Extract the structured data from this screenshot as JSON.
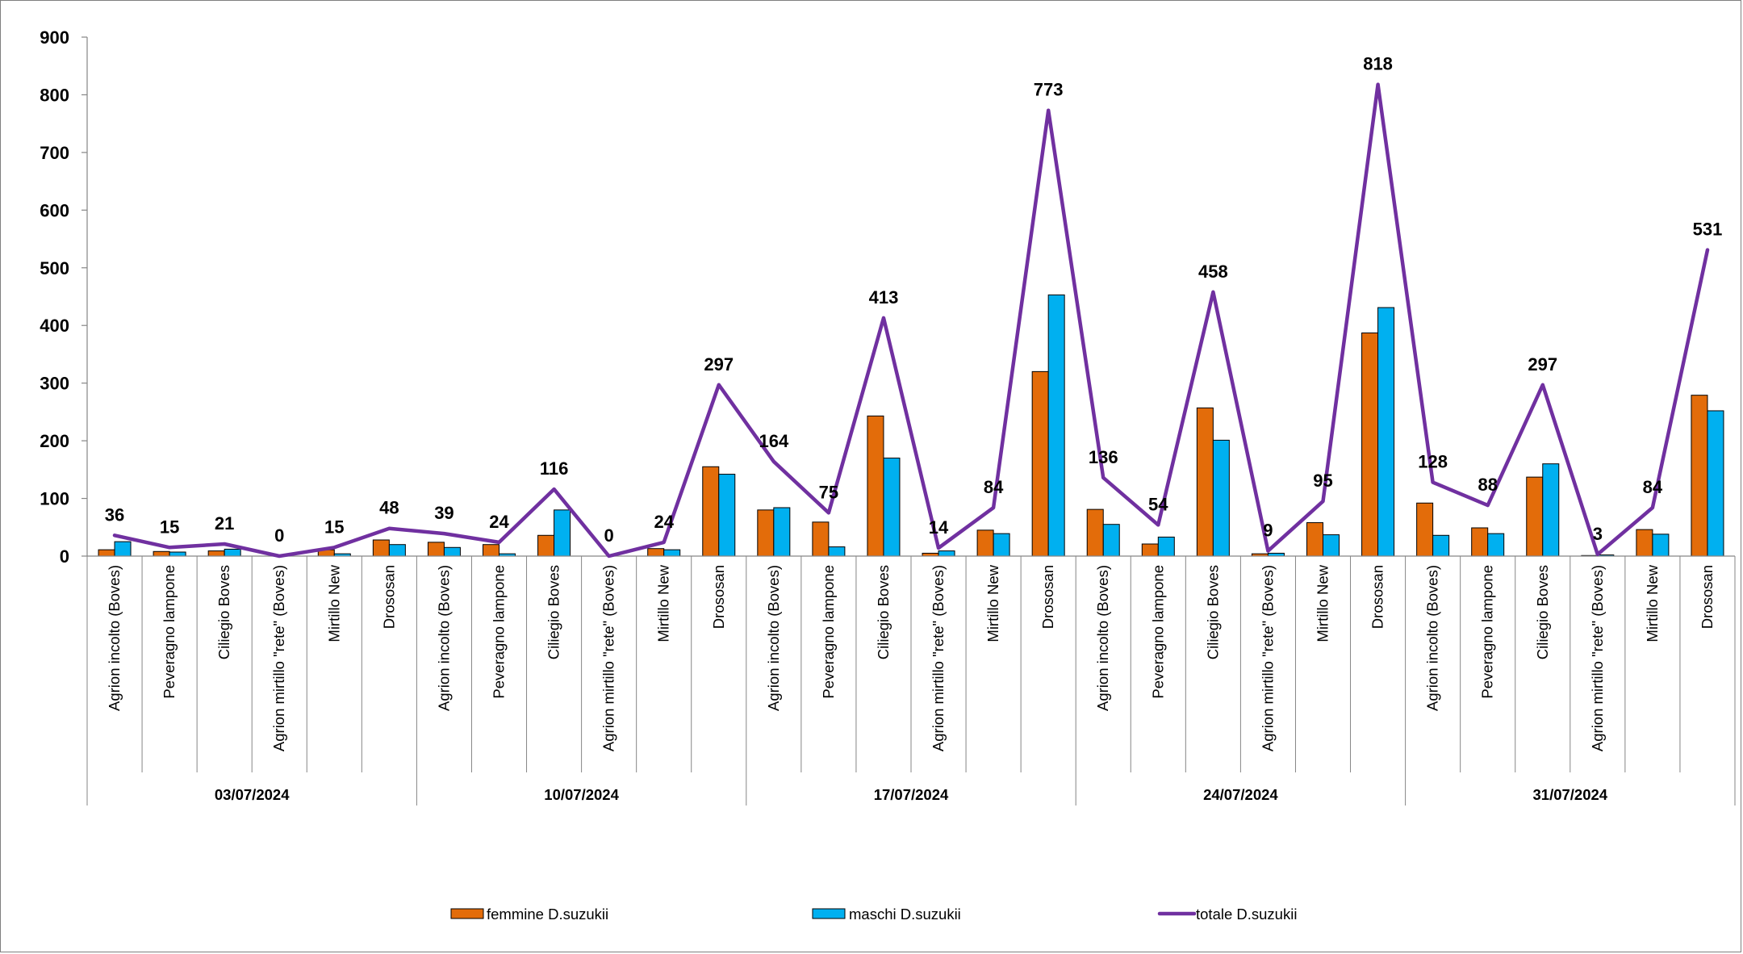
{
  "chart_data": {
    "type": "bar",
    "title": "",
    "ylim": [
      0,
      900
    ],
    "yticks": [
      0,
      100,
      200,
      300,
      400,
      500,
      600,
      700,
      800,
      900
    ],
    "grid": false,
    "legend_position": "bottom",
    "colors": {
      "femmine": "#E36C0A",
      "maschi": "#00B0F0",
      "totale": "#7030A0"
    },
    "groups": [
      {
        "label": "03/07/2024",
        "categories": [
          "Agrion incolto (Boves)",
          "Peveragno lampone",
          "Ciliegio Boves",
          "Agrion mirtillo \"rete\" (Boves)",
          "Mirtillo New",
          "Drososan"
        ]
      },
      {
        "label": "10/07/2024",
        "categories": [
          "Agrion incolto (Boves)",
          "Peveragno lampone",
          "Ciliegio Boves",
          "Agrion mirtillo \"rete\" (Boves)",
          "Mirtillo New",
          "Drososan"
        ]
      },
      {
        "label": "17/07/2024",
        "categories": [
          "Agrion incolto (Boves)",
          "Peveragno lampone",
          "Ciliegio Boves",
          "Agrion mirtillo \"rete\" (Boves)",
          "Mirtillo New",
          "Drososan"
        ]
      },
      {
        "label": "24/07/2024",
        "categories": [
          "Agrion incolto (Boves)",
          "Peveragno lampone",
          "Ciliegio Boves",
          "Agrion mirtillo \"rete\" (Boves)",
          "Mirtillo New",
          "Drososan"
        ]
      },
      {
        "label": "31/07/2024",
        "categories": [
          "Agrion incolto (Boves)",
          "Peveragno lampone",
          "Ciliegio Boves",
          "Agrion mirtillo \"rete\" (Boves)",
          "Mirtillo New",
          "Drososan"
        ]
      }
    ],
    "series": [
      {
        "name": "femmine D.suzukii",
        "type": "bar",
        "values": [
          11,
          8,
          9,
          0,
          11,
          28,
          24,
          20,
          36,
          0,
          13,
          155,
          80,
          59,
          243,
          5,
          45,
          320,
          81,
          21,
          257,
          4,
          58,
          387,
          92,
          49,
          137,
          1,
          46,
          279
        ]
      },
      {
        "name": "maschi D.suzukii",
        "type": "bar",
        "values": [
          25,
          7,
          12,
          0,
          4,
          20,
          15,
          4,
          80,
          0,
          11,
          142,
          84,
          16,
          170,
          9,
          39,
          453,
          55,
          33,
          201,
          5,
          37,
          431,
          36,
          39,
          160,
          2,
          38,
          252
        ]
      },
      {
        "name": "totale D.suzukii",
        "type": "line",
        "values": [
          36,
          15,
          21,
          0,
          15,
          48,
          39,
          24,
          116,
          0,
          24,
          297,
          164,
          75,
          413,
          14,
          84,
          773,
          136,
          54,
          458,
          9,
          95,
          818,
          128,
          88,
          297,
          3,
          84,
          531
        ],
        "labels": [
          "36",
          "15",
          "21",
          "0",
          "15",
          "48",
          "39",
          "24",
          "116",
          "0",
          "24",
          "297",
          "164",
          "75",
          "413",
          "14",
          "84",
          "773",
          "136",
          "54",
          "458",
          "9",
          "95",
          "818",
          "128",
          "88",
          "297",
          "3",
          "84",
          "531"
        ]
      }
    ]
  }
}
